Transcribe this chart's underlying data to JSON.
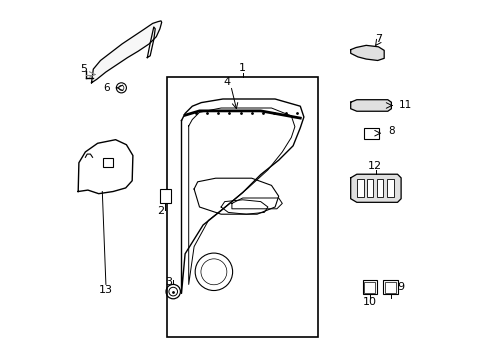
{
  "bg_color": "#ffffff",
  "line_color": "#000000",
  "gray_line": "#888888",
  "parts_labels": [
    "1",
    "2",
    "3",
    "4",
    "5",
    "6",
    "7",
    "8",
    "9",
    "10",
    "11",
    "12",
    "13"
  ]
}
